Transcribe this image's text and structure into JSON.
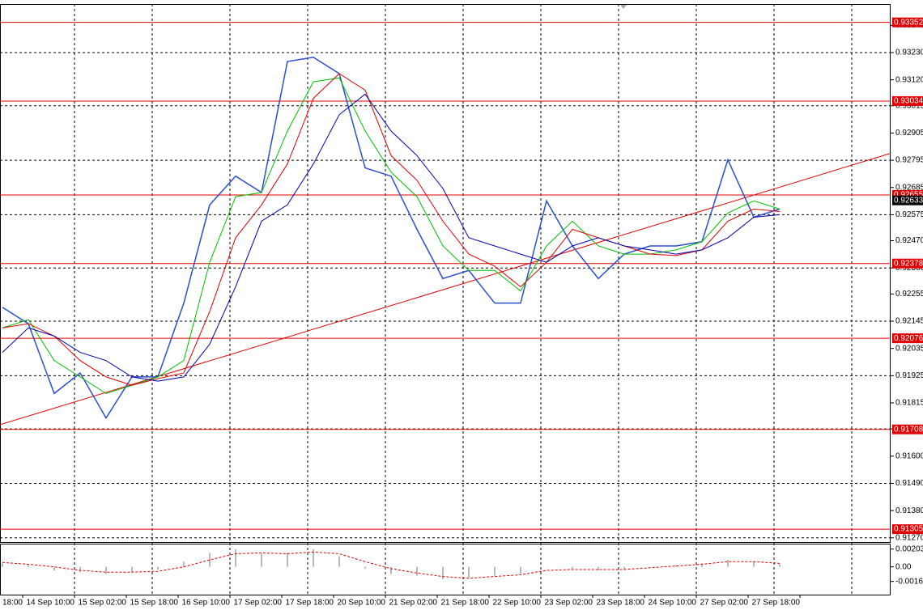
{
  "chart_data": [
    {
      "type": "line",
      "categories": [
        "18:00",
        null,
        "14 Sep 10:00",
        null,
        "15 Sep 02:00",
        null,
        "15 Sep 18:00",
        null,
        "16 Sep 10:00",
        null,
        "17 Sep 02:00",
        null,
        "17 Sep 18:00",
        null,
        "20 Sep 10:00",
        null,
        "21 Sep 02:00",
        null,
        "21 Sep 18:00",
        null,
        "22 Sep 10:00",
        null,
        "23 Sep 02:00",
        null,
        "23 Sep 18:00",
        null,
        "24 Sep 10:00",
        null,
        "27 Sep 02:00",
        null,
        "27 Sep 18:00"
      ],
      "series": [
        {
          "color": "#2a4fd0",
          "values": [
            0.92201,
            0.92135,
            0.91853,
            0.91936,
            0.91754,
            0.9192,
            0.9192,
            0.92218,
            0.92615,
            0.92731,
            0.92665,
            0.93194,
            0.93211,
            0.93145,
            0.92764,
            0.92731,
            0.92516,
            0.92317,
            0.9235,
            0.92218,
            0.92218,
            0.92631,
            0.92449,
            0.92317,
            0.92416,
            0.92449,
            0.92449,
            0.92466,
            0.92797,
            0.92565,
            0.92598
          ]
        },
        {
          "color": "#00c000",
          "values": [
            0.92118,
            0.92151,
            0.91986,
            0.9192,
            0.91853,
            0.91886,
            0.9192,
            0.91986,
            0.92383,
            0.92648,
            0.92665,
            0.92913,
            0.93112,
            0.93128,
            0.92913,
            0.92747,
            0.92648,
            0.92449,
            0.9235,
            0.9235,
            0.92267,
            0.92449,
            0.92549,
            0.92449,
            0.92416,
            0.92416,
            0.92433,
            0.92466,
            0.92582,
            0.92631,
            0.92598
          ]
        },
        {
          "color": "#e00000",
          "values": [
            0.92118,
            0.92135,
            0.92085,
            0.91986,
            0.9192,
            0.91886,
            0.91913,
            0.91936,
            0.92184,
            0.92482,
            0.92615,
            0.9278,
            0.93045,
            0.93145,
            0.93078,
            0.92814,
            0.92714,
            0.92549,
            0.92416,
            0.92367,
            0.92284,
            0.92383,
            0.92516,
            0.92482,
            0.92449,
            0.92416,
            0.9241,
            0.92433,
            0.92549,
            0.92598,
            0.92588
          ]
        },
        {
          "color": "#0000b0",
          "values": [
            0.92019,
            0.92118,
            0.92085,
            0.92019,
            0.91986,
            0.9192,
            0.91903,
            0.9192,
            0.92052,
            0.92284,
            0.92549,
            0.92615,
            0.9278,
            0.92979,
            0.93062,
            0.92913,
            0.92814,
            0.92681,
            0.92482,
            0.92449,
            0.92416,
            0.92383,
            0.92449,
            0.92482,
            0.92449,
            0.92433,
            0.92416,
            0.92433,
            0.92482,
            0.92565,
            0.92575
          ]
        }
      ],
      "ylim": [
        0.91253,
        0.93426
      ],
      "yticks": [
        {
          "value": 0.9334,
          "label": "0.93340"
        },
        {
          "value": 0.9323,
          "label": "0.93230"
        },
        {
          "value": 0.9312,
          "label": "0.93120"
        },
        0.93015,
        0.92905,
        0.92795,
        0.92685,
        0.92575,
        {
          "value": 0.9247,
          "label": "0.92470"
        },
        {
          "value": 0.9236,
          "label": "0.92360"
        },
        0.92255,
        0.92145,
        0.92035,
        0.91925,
        0.91815,
        {
          "value": 0.9171,
          "label": "0.91710"
        },
        {
          "value": 0.916,
          "label": "0.91600"
        },
        {
          "value": 0.9149,
          "label": "0.91490"
        },
        {
          "value": 0.9138,
          "label": "0.91380"
        },
        {
          "value": 0.9127,
          "label": "0.91270"
        }
      ],
      "grid": true,
      "levels": [
        0.93352,
        0.93034,
        0.92655,
        0.92378,
        0.92076,
        0.91708,
        0.91305
      ],
      "level_color": "#e00000",
      "trendline": [
        0.91727,
        0.92823
      ],
      "last_price": 0.92633
    },
    {
      "type": "bar",
      "series": [
        {
          "color": "#b8b8b8",
          "values": [
            0.0004,
            0.0002,
            -0.0004,
            -0.0006,
            -0.0008,
            -0.0006,
            -0.0003,
            0.0006,
            0.0016,
            0.002,
            0.0015,
            0.0016,
            0.002,
            0.0012,
            -0.0002,
            -0.0008,
            -0.001,
            -0.0014,
            -0.0012,
            -0.001,
            -0.0008,
            0,
            -0.0002,
            -0.0004,
            -0.0003,
            0,
            0.0002,
            0.0004,
            0.0008,
            0.0006,
            0.0003
          ]
        },
        {
          "color": "#e00000",
          "type": "line",
          "dashed": true,
          "values": [
            0.0005,
            0.0003,
            0,
            -0.0004,
            -0.0006,
            -0.0006,
            -0.0005,
            0,
            0.0008,
            0.0015,
            0.0016,
            0.0015,
            0.0017,
            0.0015,
            0.0006,
            -0.0002,
            -0.0007,
            -0.0011,
            -0.0013,
            -0.0011,
            -0.0009,
            -0.0004,
            -0.0003,
            -0.0003,
            -0.0003,
            -0.0001,
            0.0001,
            0.0003,
            0.0006,
            0.0006,
            0.0004
          ]
        }
      ],
      "ylim": [
        -0.00317,
        0.00256
      ],
      "yticks": [
        0.002035,
        {
          "value": 0,
          "label": "0.00"
        },
        -0.00166
      ],
      "grid": false
    }
  ]
}
